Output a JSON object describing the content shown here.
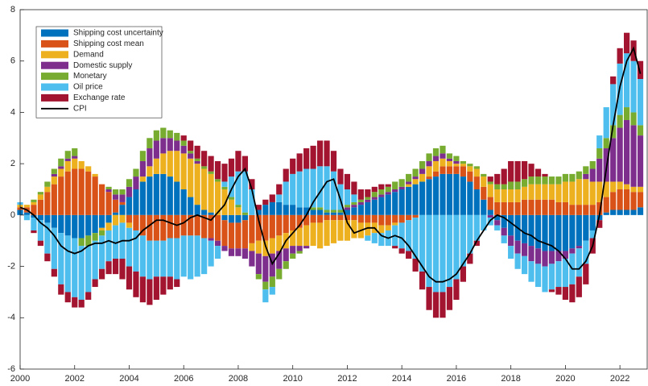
{
  "chart_data": {
    "type": "bar",
    "stacked": true,
    "xlim": [
      2000,
      2023
    ],
    "ylim": [
      -6,
      8
    ],
    "xticks": [
      2000,
      2002,
      2004,
      2006,
      2008,
      2010,
      2012,
      2014,
      2016,
      2018,
      2020,
      2022
    ],
    "yticks": [
      -6,
      -4,
      -2,
      0,
      2,
      4,
      6,
      8
    ],
    "grid": false,
    "legend": "upper-left",
    "x": [
      2000,
      2000.25,
      2000.5,
      2000.75,
      2001,
      2001.25,
      2001.5,
      2001.75,
      2002,
      2002.25,
      2002.5,
      2002.75,
      2003,
      2003.25,
      2003.5,
      2003.75,
      2004,
      2004.25,
      2004.5,
      2004.75,
      2005,
      2005.25,
      2005.5,
      2005.75,
      2006,
      2006.25,
      2006.5,
      2006.75,
      2007,
      2007.25,
      2007.5,
      2007.75,
      2008,
      2008.25,
      2008.5,
      2008.75,
      2009,
      2009.25,
      2009.5,
      2009.75,
      2010,
      2010.25,
      2010.5,
      2010.75,
      2011,
      2011.25,
      2011.5,
      2011.75,
      2012,
      2012.25,
      2012.5,
      2012.75,
      2013,
      2013.25,
      2013.5,
      2013.75,
      2014,
      2014.25,
      2014.5,
      2014.75,
      2015,
      2015.25,
      2015.5,
      2015.75,
      2016,
      2016.25,
      2016.5,
      2016.75,
      2017,
      2017.25,
      2017.5,
      2017.75,
      2018,
      2018.25,
      2018.5,
      2018.75,
      2019,
      2019.25,
      2019.5,
      2019.75,
      2020,
      2020.25,
      2020.5,
      2020.75,
      2021,
      2021.25,
      2021.5,
      2021.75,
      2022,
      2022.25,
      2022.5,
      2022.75
    ],
    "series": [
      {
        "name": "Shipping cost uncertainty",
        "color": "#0072BD",
        "values": [
          0.2,
          0.1,
          -0.1,
          -0.2,
          -0.3,
          -0.5,
          -0.7,
          -0.8,
          -0.9,
          -0.9,
          -0.8,
          -0.7,
          -0.5,
          -0.3,
          0.1,
          0.4,
          0.7,
          1.0,
          1.3,
          1.5,
          1.6,
          1.6,
          1.5,
          1.3,
          1.0,
          0.7,
          0.4,
          0.2,
          0.1,
          0.0,
          -0.2,
          -0.3,
          -0.3,
          -0.2,
          0.0,
          0.2,
          0.4,
          0.5,
          0.5,
          0.4,
          0.4,
          0.3,
          0.3,
          0.2,
          0.2,
          0.1,
          0.1,
          0.1,
          0.2,
          0.3,
          0.4,
          0.5,
          0.6,
          0.7,
          0.8,
          0.9,
          1.0,
          1.1,
          1.2,
          1.3,
          1.4,
          1.5,
          1.6,
          1.6,
          1.6,
          1.5,
          1.3,
          1.0,
          0.6,
          0.2,
          -0.2,
          -0.5,
          -0.8,
          -1.0,
          -1.1,
          -1.2,
          -1.3,
          -1.4,
          -1.4,
          -1.4,
          -1.4,
          -1.3,
          -1.2,
          -1.0,
          -0.6,
          -0.2,
          0.1,
          0.2,
          0.2,
          0.2,
          0.2,
          0.3
        ]
      },
      {
        "name": "Shipping cost mean",
        "color": "#D95319",
        "values": [
          0.1,
          0.2,
          0.4,
          0.6,
          0.9,
          1.2,
          1.5,
          1.7,
          1.8,
          1.8,
          1.7,
          1.5,
          1.2,
          0.9,
          0.5,
          0.1,
          -0.3,
          -0.6,
          -0.8,
          -1.0,
          -1.0,
          -1.0,
          -0.9,
          -0.9,
          -0.8,
          -0.8,
          -0.8,
          -0.9,
          -0.9,
          -1.0,
          -1.0,
          -1.0,
          -1.0,
          -1.1,
          -1.1,
          -1.0,
          -1.0,
          -0.9,
          -0.8,
          -0.7,
          -0.6,
          -0.5,
          -0.4,
          -0.3,
          -0.3,
          -0.2,
          -0.2,
          -0.2,
          -0.2,
          -0.2,
          -0.3,
          -0.3,
          -0.3,
          -0.4,
          -0.4,
          -0.3,
          -0.3,
          -0.2,
          -0.1,
          0.0,
          0.1,
          0.2,
          0.3,
          0.3,
          0.3,
          0.4,
          0.4,
          0.5,
          0.5,
          0.5,
          0.5,
          0.5,
          0.5,
          0.5,
          0.6,
          0.6,
          0.6,
          0.6,
          0.6,
          0.5,
          0.5,
          0.4,
          0.4,
          0.4,
          0.4,
          0.5,
          0.6,
          0.7,
          0.8,
          0.8,
          0.7,
          0.6
        ]
      },
      {
        "name": "Demand",
        "color": "#EDB120",
        "values": [
          0.1,
          0.1,
          0.1,
          0.2,
          0.2,
          0.3,
          0.3,
          0.4,
          0.4,
          0.3,
          0.2,
          0.1,
          -0.1,
          -0.3,
          -0.4,
          -0.3,
          -0.2,
          0.0,
          0.2,
          0.4,
          0.6,
          0.8,
          1.0,
          1.2,
          1.4,
          1.5,
          1.6,
          1.6,
          1.5,
          1.3,
          1.0,
          0.6,
          0.3,
          0.0,
          -0.3,
          -0.5,
          -0.6,
          -0.6,
          -0.6,
          -0.6,
          -0.6,
          -0.7,
          -0.8,
          -0.9,
          -1.0,
          -1.0,
          -0.9,
          -0.8,
          -0.8,
          -0.7,
          -0.6,
          -0.5,
          -0.4,
          -0.3,
          -0.2,
          -0.1,
          0.0,
          0.1,
          0.2,
          0.3,
          0.4,
          0.4,
          0.3,
          0.2,
          0.1,
          0.1,
          0.2,
          0.3,
          0.4,
          0.5,
          0.5,
          0.5,
          0.5,
          0.5,
          0.5,
          0.6,
          0.6,
          0.6,
          0.6,
          0.7,
          0.8,
          0.9,
          1.0,
          1.0,
          0.9,
          0.8,
          0.6,
          0.4,
          0.3,
          0.2,
          0.2,
          0.2
        ]
      },
      {
        "name": "Domestic supply",
        "color": "#7E2F8E",
        "values": [
          0.0,
          0.0,
          0.0,
          0.0,
          0.0,
          0.1,
          0.1,
          0.1,
          0.1,
          0.0,
          0.0,
          0.0,
          0.0,
          0.1,
          0.2,
          0.3,
          0.4,
          0.5,
          0.6,
          0.7,
          0.7,
          0.6,
          0.5,
          0.4,
          0.3,
          0.2,
          0.1,
          0.0,
          -0.1,
          -0.2,
          -0.2,
          -0.3,
          -0.3,
          -0.4,
          -0.6,
          -0.8,
          -1.0,
          -0.9,
          -0.7,
          -0.5,
          -0.3,
          -0.2,
          -0.1,
          0.0,
          0.0,
          0.0,
          0.0,
          0.0,
          0.1,
          0.1,
          0.1,
          0.1,
          0.1,
          0.1,
          0.1,
          0.1,
          0.1,
          0.1,
          0.1,
          0.2,
          0.2,
          0.2,
          0.2,
          0.1,
          0.1,
          0.0,
          0.0,
          0.0,
          0.0,
          -0.1,
          -0.2,
          -0.3,
          -0.4,
          -0.5,
          -0.5,
          -0.6,
          -0.6,
          -0.6,
          -0.5,
          -0.4,
          -0.3,
          -0.2,
          -0.1,
          0.2,
          0.5,
          0.9,
          1.3,
          1.7,
          2.1,
          2.5,
          2.4,
          2.0
        ]
      },
      {
        "name": "Monetary",
        "color": "#77AC30",
        "values": [
          0.0,
          0.0,
          0.1,
          0.1,
          0.2,
          0.2,
          0.3,
          0.3,
          0.3,
          -0.3,
          -0.4,
          -0.3,
          -0.2,
          0.1,
          0.2,
          0.2,
          0.3,
          0.3,
          0.4,
          0.4,
          0.4,
          0.4,
          0.3,
          0.3,
          0.2,
          0.1,
          0.1,
          0.1,
          0.1,
          0.1,
          0.1,
          0.1,
          0.1,
          0.1,
          0.0,
          -0.2,
          -0.3,
          -0.4,
          -0.4,
          -0.3,
          -0.2,
          -0.1,
          0.0,
          0.1,
          0.1,
          0.1,
          0.1,
          0.1,
          0.1,
          0.1,
          0.1,
          0.1,
          0.2,
          0.2,
          0.2,
          0.3,
          0.3,
          0.3,
          0.3,
          0.3,
          0.3,
          0.3,
          0.3,
          0.2,
          0.2,
          0.1,
          0.1,
          0.1,
          0.1,
          0.1,
          0.2,
          0.2,
          0.3,
          0.3,
          0.3,
          0.3,
          0.3,
          0.3,
          0.3,
          0.3,
          0.3,
          0.3,
          0.3,
          0.3,
          0.3,
          0.4,
          0.4,
          0.5,
          0.5,
          0.5,
          0.5,
          0.4
        ]
      },
      {
        "name": "Oil price",
        "color": "#4DBEEE",
        "values": [
          0.1,
          -0.2,
          -0.5,
          -0.8,
          -1.2,
          -1.6,
          -2.0,
          -2.2,
          -2.3,
          -2.1,
          -1.8,
          -1.5,
          -1.3,
          -1.2,
          -1.3,
          -1.4,
          -1.5,
          -1.6,
          -1.6,
          -1.5,
          -1.4,
          -1.4,
          -1.5,
          -1.6,
          -1.6,
          -1.7,
          -1.6,
          -1.4,
          -1.0,
          -0.5,
          0.2,
          0.8,
          1.3,
          1.6,
          1.0,
          0.0,
          -0.5,
          -0.3,
          0.3,
          0.9,
          1.2,
          1.4,
          1.5,
          1.5,
          1.6,
          1.7,
          1.5,
          1.0,
          0.6,
          0.3,
          0.0,
          -0.2,
          -0.4,
          -0.5,
          -0.6,
          -0.8,
          -1.0,
          -1.2,
          -1.6,
          -2.2,
          -2.8,
          -3.0,
          -3.0,
          -2.8,
          -2.5,
          -2.0,
          -1.5,
          -1.0,
          -0.6,
          -0.3,
          -0.2,
          -0.3,
          -0.5,
          -0.6,
          -0.7,
          -0.8,
          -0.9,
          -1.0,
          -1.0,
          -1.0,
          -1.1,
          -1.2,
          -1.1,
          -0.9,
          -0.3,
          0.5,
          1.2,
          1.6,
          2.0,
          2.1,
          2.0,
          1.8
        ]
      },
      {
        "name": "Exchange rate",
        "color": "#A2142F",
        "values": [
          0.0,
          0.0,
          -0.1,
          -0.2,
          -0.3,
          -0.3,
          -0.4,
          -0.4,
          -0.4,
          -0.3,
          -0.3,
          -0.3,
          -0.4,
          -0.5,
          -0.6,
          -0.8,
          -0.9,
          -1.0,
          -1.0,
          -1.0,
          -0.9,
          -0.7,
          -0.5,
          -0.3,
          0.2,
          0.4,
          0.5,
          0.6,
          0.6,
          0.7,
          0.7,
          0.7,
          0.8,
          0.6,
          0.4,
          0.2,
          0.2,
          0.3,
          0.4,
          0.5,
          0.6,
          0.7,
          0.8,
          0.9,
          1.0,
          1.0,
          0.8,
          0.6,
          0.6,
          0.5,
          0.4,
          0.3,
          0.2,
          0.2,
          0.1,
          -0.1,
          -0.2,
          -0.3,
          -0.5,
          -0.7,
          -0.9,
          -1.0,
          -1.0,
          -0.9,
          -0.8,
          -0.6,
          -0.4,
          -0.2,
          0.0,
          0.2,
          0.4,
          0.6,
          0.8,
          0.8,
          0.7,
          0.5,
          0.3,
          0.1,
          -0.1,
          -0.3,
          -0.5,
          -0.7,
          -0.8,
          -0.8,
          -0.6,
          -0.3,
          0.0,
          0.3,
          0.6,
          0.8,
          0.8,
          0.7
        ]
      },
      {
        "name": "CPI",
        "color": "#000000",
        "type": "line",
        "values": [
          0.3,
          0.2,
          0.0,
          -0.3,
          -0.5,
          -0.8,
          -1.2,
          -1.4,
          -1.5,
          -1.4,
          -1.2,
          -1.1,
          -1.1,
          -1.0,
          -1.1,
          -1.0,
          -1.0,
          -0.9,
          -0.6,
          -0.4,
          -0.2,
          -0.2,
          -0.3,
          -0.4,
          -0.3,
          -0.1,
          0.0,
          -0.1,
          -0.2,
          0.1,
          0.4,
          1.0,
          1.5,
          1.8,
          1.0,
          -0.2,
          -1.2,
          -1.9,
          -1.5,
          -1.0,
          -0.7,
          -0.4,
          0.0,
          0.5,
          0.9,
          1.3,
          1.4,
          0.6,
          -0.3,
          -0.7,
          -0.6,
          -0.5,
          -0.5,
          -0.8,
          -0.9,
          -0.8,
          -0.9,
          -1.2,
          -1.6,
          -2.0,
          -2.4,
          -2.6,
          -2.6,
          -2.5,
          -2.3,
          -1.9,
          -1.5,
          -1.0,
          -0.6,
          -0.2,
          0.0,
          -0.1,
          -0.3,
          -0.5,
          -0.7,
          -0.8,
          -1.0,
          -1.1,
          -1.2,
          -1.4,
          -1.7,
          -2.1,
          -2.1,
          -1.8,
          -1.2,
          0.0,
          1.8,
          3.5,
          5.0,
          6.0,
          6.5,
          5.5
        ]
      }
    ]
  }
}
